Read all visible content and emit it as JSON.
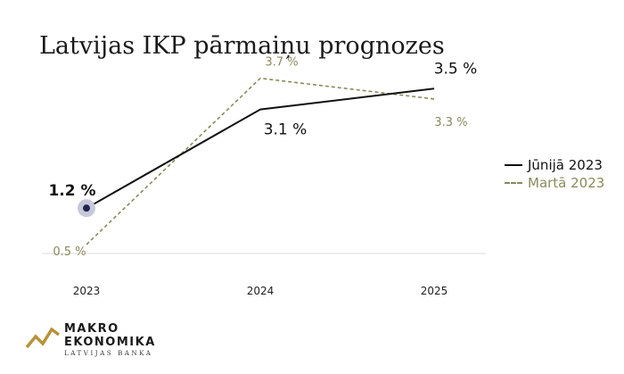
{
  "chart_data": {
    "type": "line",
    "title": "Latvijas IKP pārmaiņu prognozes",
    "categories": [
      "2023",
      "2024",
      "2025"
    ],
    "series": [
      {
        "name": "Jūnijā 2023",
        "values": [
          1.2,
          3.1,
          3.5
        ],
        "labels": [
          "1.2 %",
          "3.1 %",
          "3.5 %"
        ],
        "color": "#111111",
        "style": "solid"
      },
      {
        "name": "Martā 2023",
        "values": [
          0.5,
          3.7,
          3.3
        ],
        "labels": [
          "0.5 %",
          "3.7 %",
          "3.3 %"
        ],
        "color": "#8a8a5c",
        "style": "dashed"
      }
    ],
    "ylim": [
      0,
      5
    ],
    "grid": false,
    "legend_position": "right"
  },
  "logo": {
    "line1": "MAKRO",
    "line2": "EKONOMIKA",
    "sub": "LATVIJAS BANKA",
    "mark_color": "#b8923a"
  }
}
